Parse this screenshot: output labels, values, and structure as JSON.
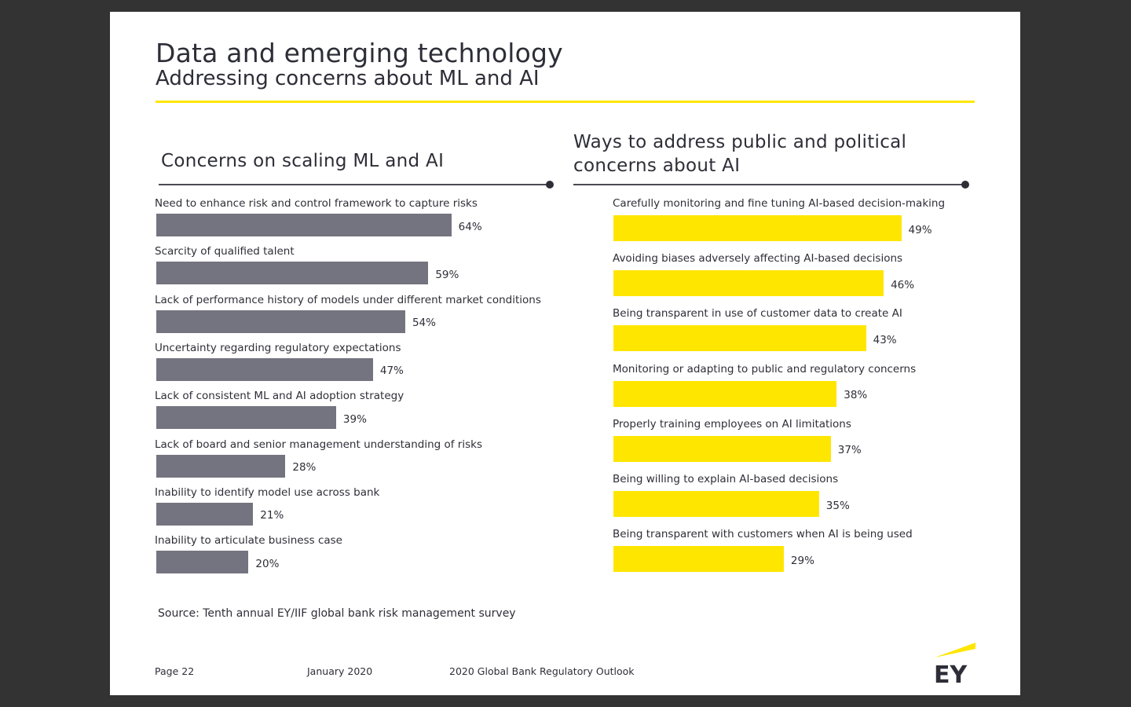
{
  "header": {
    "title": "Data and emerging technology",
    "subtitle": "Addressing concerns about ML and AI"
  },
  "colors": {
    "accent_yellow": "#ffe600",
    "bar_grey": "#747480",
    "text_dark": "#2e2e38",
    "background_frame": "#333333"
  },
  "chart_data": [
    {
      "type": "bar",
      "orientation": "horizontal",
      "title": "Concerns on scaling ML and AI",
      "categories": [
        "Need to enhance risk and control framework to capture risks",
        "Scarcity of qualified talent",
        "Lack of performance history of models under different market conditions",
        "Uncertainty regarding regulatory expectations",
        "Lack of consistent ML and AI adoption strategy",
        "Lack of board and senior management understanding of risks",
        "Inability to identify model use across bank",
        "Inability to articulate business case"
      ],
      "values": [
        64,
        59,
        54,
        47,
        39,
        28,
        21,
        20
      ],
      "value_labels": [
        "64%",
        "59%",
        "54%",
        "47%",
        "39%",
        "28%",
        "21%",
        "20%"
      ],
      "unit": "%",
      "bar_color": "#747480",
      "xlabel": "",
      "ylabel": "",
      "grid": false
    },
    {
      "type": "bar",
      "orientation": "horizontal",
      "title": "Ways to address public and political concerns about AI",
      "categories": [
        "Carefully monitoring and fine tuning AI-based decision-making",
        "Avoiding biases adversely affecting AI-based decisions",
        "Being transparent in use of customer data to create AI",
        "Monitoring or adapting to public and regulatory concerns",
        "Properly training employees on AI limitations",
        "Being willing to explain AI-based decisions",
        "Being transparent with customers when AI is being used"
      ],
      "values": [
        49,
        46,
        43,
        38,
        37,
        35,
        29
      ],
      "value_labels": [
        "49%",
        "46%",
        "43%",
        "38%",
        "37%",
        "35%",
        "29%"
      ],
      "unit": "%",
      "bar_color": "#ffe600",
      "xlabel": "",
      "ylabel": "",
      "grid": false
    }
  ],
  "source": "Source: Tenth annual EY/IIF global bank risk management survey",
  "footer": {
    "page": "Page 22",
    "date": "January 2020",
    "publication": "2020 Global Bank Regulatory Outlook",
    "logo_text": "EY"
  }
}
